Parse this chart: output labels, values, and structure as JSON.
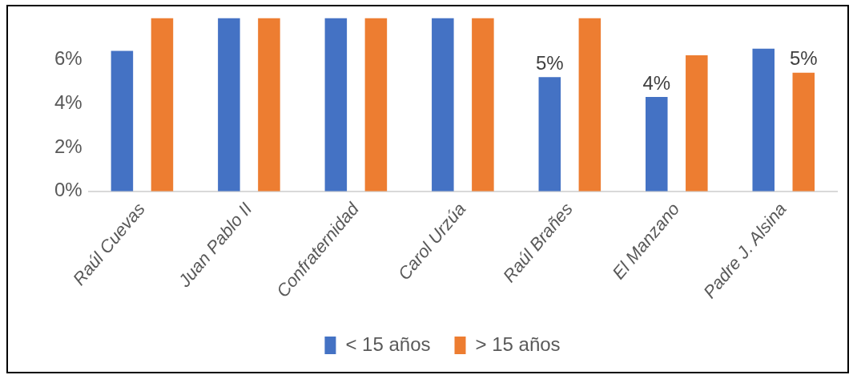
{
  "chart_data": {
    "type": "bar",
    "categories": [
      "Raúl Cuevas",
      "Juan Pablo II",
      "Confraternidad",
      "Carol Urzúa",
      "Raúl Brañes",
      "El Manzano",
      "Padre J. Alsina"
    ],
    "series": [
      {
        "name": "< 15 años",
        "color": "#4472c4",
        "values": [
          6.4,
          7.9,
          7.9,
          7.9,
          5.2,
          4.3,
          6.5
        ],
        "value_labels": [
          null,
          null,
          null,
          null,
          "5%",
          "4%",
          null
        ]
      },
      {
        "name": "> 15 años",
        "color": "#ed7d31",
        "values": [
          7.9,
          7.9,
          7.9,
          7.9,
          7.9,
          6.2,
          5.4
        ],
        "value_labels": [
          null,
          null,
          null,
          null,
          null,
          null,
          "5%"
        ]
      }
    ],
    "ylim": [
      0,
      7.9
    ],
    "yticks": [
      {
        "value": 0,
        "label": "0%"
      },
      {
        "value": 2,
        "label": "2%"
      },
      {
        "value": 4,
        "label": "4%"
      },
      {
        "value": 6,
        "label": "6%"
      }
    ],
    "grid": false,
    "legend": "bottom"
  }
}
